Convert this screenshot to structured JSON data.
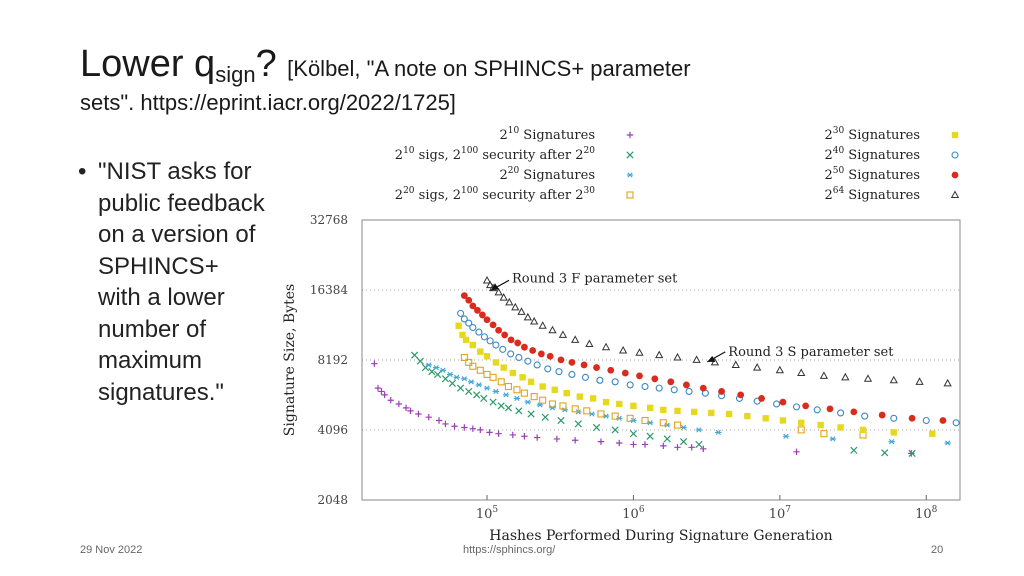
{
  "slide": {
    "title_main": "Lower q",
    "title_sub": "sign",
    "title_q": "?",
    "citation_line1": "[Kölbel, \"A note on SPHINCS+ parameter",
    "citation_line2": "sets\". https://eprint.iacr.org/2022/1725]",
    "bullet_marker": "•",
    "bullet_text": "\"NIST asks for public feedback on a version of SPHINCS+ with a lower number of maximum signatures.\"",
    "footer_date": "29 Nov 2022",
    "footer_url": "https://sphincs.org/",
    "footer_page": "20"
  },
  "chart_data": {
    "type": "scatter",
    "xscale": "log",
    "yscale": "log",
    "xlim": [
      14000,
      170000000
    ],
    "ylim": [
      2048,
      32768
    ],
    "grid": "y-dotted",
    "xlabel": "Hashes Performed During Signature Generation",
    "ylabel": "Signature Size, Bytes",
    "xticks": [
      {
        "value": 100000,
        "base": "10",
        "exp": "5"
      },
      {
        "value": 1000000,
        "base": "10",
        "exp": "6"
      },
      {
        "value": 10000000,
        "base": "10",
        "exp": "7"
      },
      {
        "value": 100000000,
        "base": "10",
        "exp": "8"
      }
    ],
    "yticks": [
      {
        "value": 2048,
        "label": "2048"
      },
      {
        "value": 4096,
        "label": "4096"
      },
      {
        "value": 8192,
        "label": "8192"
      },
      {
        "value": 16384,
        "label": "16384"
      },
      {
        "value": 32768,
        "label": "32768"
      }
    ],
    "legend_placement": "top",
    "annotations": [
      {
        "text": "Round 3 F parameter set",
        "x": 100000,
        "y": 17000
      },
      {
        "text": "Round 3 S parameter set",
        "x": 3000000,
        "y": 8200
      }
    ],
    "series": [
      {
        "key": "s10",
        "legend_pre": "2",
        "legend_exp": "10",
        "legend_post": " Signatures",
        "marker": "plus",
        "color": "#9b3fb5",
        "x": [
          17000,
          18000,
          19000,
          20000,
          22000,
          25000,
          28000,
          30000,
          34000,
          40000,
          47000,
          52000,
          60000,
          70000,
          80000,
          90000,
          104000,
          120000,
          150000,
          180000,
          220000,
          300000,
          400000,
          600000,
          800000,
          1000000,
          1200000,
          1600000,
          2000000,
          2500000,
          3000000,
          13000000,
          79000000
        ],
        "y": [
          7900,
          6200,
          6000,
          5800,
          5500,
          5300,
          5100,
          4950,
          4800,
          4650,
          4500,
          4350,
          4250,
          4200,
          4150,
          4100,
          4000,
          3950,
          3900,
          3850,
          3800,
          3750,
          3700,
          3650,
          3600,
          3550,
          3550,
          3500,
          3450,
          3450,
          3400,
          3300,
          3250
        ]
      },
      {
        "key": "s10b",
        "legend_pre": "2",
        "legend_exp": "10",
        "legend_post": " sigs, 2",
        "legend_exp2": "100",
        "legend_post2": " security after 2",
        "legend_exp3": "20",
        "marker": "x",
        "color": "#2a9a6a",
        "x": [
          32000,
          35000,
          38000,
          42000,
          46000,
          52000,
          58000,
          66000,
          75000,
          85000,
          95000,
          110000,
          125000,
          140000,
          165000,
          200000,
          250000,
          320000,
          420000,
          560000,
          750000,
          1000000,
          1300000,
          1700000,
          2200000,
          2800000,
          32000000,
          52000000,
          80000000
        ],
        "y": [
          8600,
          8100,
          7600,
          7300,
          7100,
          6800,
          6500,
          6200,
          6000,
          5800,
          5600,
          5400,
          5200,
          5100,
          4950,
          4800,
          4650,
          4500,
          4350,
          4200,
          4100,
          3950,
          3850,
          3750,
          3650,
          3550,
          3350,
          3270,
          3250
        ]
      },
      {
        "key": "s20",
        "legend_pre": "2",
        "legend_exp": "20",
        "legend_post": " Signatures",
        "marker": "star",
        "color": "#3fa8d8",
        "x": [
          40000,
          45000,
          50000,
          56000,
          62000,
          70000,
          78000,
          88000,
          100000,
          115000,
          135000,
          160000,
          190000,
          230000,
          280000,
          340000,
          420000,
          520000,
          650000,
          800000,
          1000000,
          1300000,
          1700000,
          2200000,
          2800000,
          3800000,
          11000000,
          23000000,
          58000000,
          140000000
        ],
        "y": [
          7800,
          7600,
          7400,
          7100,
          6900,
          6800,
          6600,
          6400,
          6200,
          6000,
          5800,
          5600,
          5400,
          5250,
          5100,
          5000,
          4900,
          4800,
          4700,
          4600,
          4500,
          4400,
          4300,
          4200,
          4100,
          4000,
          3850,
          3750,
          3650,
          3600
        ]
      },
      {
        "key": "s20b",
        "legend_pre": "2",
        "legend_exp": "20",
        "legend_post": " sigs, 2",
        "legend_exp2": "100",
        "legend_post2": " security after 2",
        "legend_exp3": "30",
        "marker": "square",
        "color": "#e2a41b",
        "x": [
          70000,
          75000,
          80000,
          90000,
          100000,
          110000,
          125000,
          140000,
          160000,
          180000,
          210000,
          240000,
          280000,
          330000,
          400000,
          480000,
          600000,
          750000,
          950000,
          1200000,
          1600000,
          2000000,
          14000000,
          20000000,
          37000000
        ],
        "y": [
          8400,
          8000,
          7700,
          7400,
          7100,
          6900,
          6600,
          6300,
          6100,
          5900,
          5700,
          5500,
          5300,
          5200,
          5050,
          4950,
          4800,
          4700,
          4600,
          4500,
          4400,
          4300,
          4100,
          3950,
          3900
        ]
      },
      {
        "key": "s30",
        "legend_pre": "2",
        "legend_exp": "30",
        "legend_post": " Signatures",
        "marker": "filled-square",
        "color": "#e6d81e",
        "x": [
          64000,
          68000,
          72000,
          80000,
          90000,
          100000,
          115000,
          130000,
          150000,
          175000,
          200000,
          240000,
          290000,
          350000,
          430000,
          530000,
          650000,
          800000,
          1000000,
          1300000,
          1600000,
          2000000,
          2600000,
          3400000,
          4500000,
          6000000,
          8000000,
          10500000,
          14000000,
          19000000,
          26000000,
          37000000,
          60000000,
          110000000
        ],
        "y": [
          11500,
          10500,
          10000,
          9500,
          8900,
          8500,
          8000,
          7600,
          7200,
          6900,
          6600,
          6300,
          6100,
          5900,
          5700,
          5600,
          5400,
          5300,
          5200,
          5100,
          5000,
          4950,
          4900,
          4850,
          4800,
          4700,
          4600,
          4500,
          4400,
          4300,
          4200,
          4100,
          4000,
          3950
        ]
      },
      {
        "key": "s40",
        "legend_pre": "2",
        "legend_exp": "40",
        "legend_post": " Signatures",
        "marker": "circle",
        "color": "#3b86c4",
        "x": [
          66000,
          70000,
          75000,
          80000,
          88000,
          96000,
          105000,
          115000,
          128000,
          145000,
          165000,
          190000,
          220000,
          260000,
          310000,
          380000,
          470000,
          590000,
          750000,
          950000,
          1200000,
          1500000,
          1900000,
          2400000,
          3100000,
          4000000,
          5300000,
          7000000,
          9500000,
          13000000,
          18000000,
          26000000,
          38000000,
          60000000,
          100000000,
          160000000
        ],
        "y": [
          13000,
          12300,
          11800,
          11300,
          10800,
          10300,
          9900,
          9500,
          9100,
          8700,
          8400,
          8100,
          7800,
          7500,
          7300,
          7100,
          6900,
          6700,
          6600,
          6400,
          6300,
          6200,
          6100,
          6000,
          5900,
          5750,
          5600,
          5450,
          5300,
          5150,
          5000,
          4850,
          4700,
          4600,
          4500,
          4400
        ]
      },
      {
        "key": "s50",
        "legend_pre": "2",
        "legend_exp": "50",
        "legend_post": " Signatures",
        "marker": "filled-circle",
        "color": "#d92b1e",
        "x": [
          70000,
          75000,
          80000,
          86000,
          93000,
          100000,
          110000,
          120000,
          132000,
          146000,
          162000,
          180000,
          205000,
          235000,
          270000,
          320000,
          380000,
          460000,
          560000,
          700000,
          880000,
          1100000,
          1400000,
          1800000,
          2300000,
          3000000,
          4000000,
          5400000,
          7500000,
          10500000,
          15000000,
          22000000,
          32000000,
          50000000,
          80000000,
          130000000
        ],
        "y": [
          15500,
          14800,
          14000,
          13400,
          12800,
          12200,
          11600,
          11000,
          10500,
          10000,
          9700,
          9300,
          9000,
          8700,
          8500,
          8200,
          8000,
          7800,
          7600,
          7400,
          7200,
          7000,
          6800,
          6600,
          6400,
          6200,
          6000,
          5800,
          5600,
          5400,
          5200,
          5050,
          4900,
          4750,
          4600,
          4500
        ]
      },
      {
        "key": "s64",
        "legend_pre": "2",
        "legend_exp": "64",
        "legend_post": " Signatures",
        "marker": "triangle",
        "color": "#333333",
        "x": [
          100000,
          105000,
          110000,
          120000,
          130000,
          142000,
          156000,
          172000,
          190000,
          210000,
          240000,
          280000,
          330000,
          400000,
          500000,
          650000,
          850000,
          1100000,
          1500000,
          2000000,
          2700000,
          3600000,
          5000000,
          7000000,
          10000000,
          14000000,
          20000000,
          28000000,
          40000000,
          60000000,
          90000000,
          140000000
        ],
        "y": [
          18000,
          17200,
          16700,
          16000,
          15200,
          14500,
          13800,
          13200,
          12500,
          12000,
          11500,
          11000,
          10500,
          10000,
          9600,
          9300,
          9000,
          8800,
          8600,
          8400,
          8200,
          8000,
          7800,
          7600,
          7400,
          7200,
          7000,
          6900,
          6800,
          6700,
          6600,
          6500
        ]
      }
    ]
  }
}
